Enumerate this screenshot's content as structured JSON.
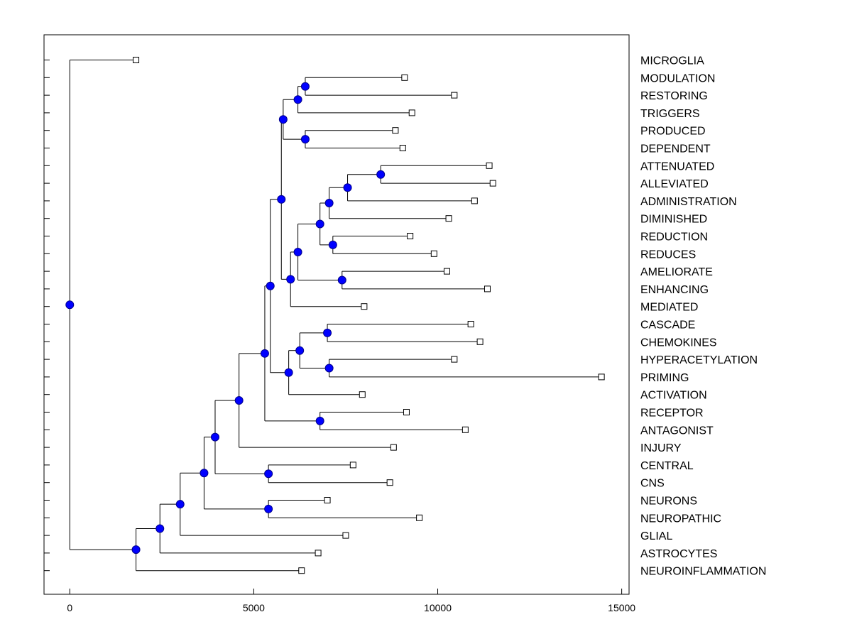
{
  "chart_data": {
    "type": "dendrogram",
    "orientation": "horizontal",
    "xlim": [
      -700,
      15200
    ],
    "x_ticks": [
      0,
      5000,
      10000,
      15000
    ],
    "x_tick_labels": [
      "0",
      "5000",
      "10000",
      "15000"
    ],
    "leaves": [
      {
        "label": "MICROGLIA",
        "value": 1800
      },
      {
        "label": "MODULATION",
        "value": 9100
      },
      {
        "label": "RESTORING",
        "value": 10450
      },
      {
        "label": "TRIGGERS",
        "value": 9300
      },
      {
        "label": "PRODUCED",
        "value": 8850
      },
      {
        "label": "DEPENDENT",
        "value": 9050
      },
      {
        "label": "ATTENUATED",
        "value": 11400
      },
      {
        "label": "ALLEVIATED",
        "value": 11500
      },
      {
        "label": "ADMINISTRATION",
        "value": 11000
      },
      {
        "label": "DIMINISHED",
        "value": 10300
      },
      {
        "label": "REDUCTION",
        "value": 9250
      },
      {
        "label": "REDUCES",
        "value": 9900
      },
      {
        "label": "AMELIORATE",
        "value": 10250
      },
      {
        "label": "ENHANCING",
        "value": 11350
      },
      {
        "label": "MEDIATED",
        "value": 8000
      },
      {
        "label": "CASCADE",
        "value": 10900
      },
      {
        "label": "CHEMOKINES",
        "value": 11150
      },
      {
        "label": "HYPERACETYLATION",
        "value": 10450
      },
      {
        "label": "PRIMING",
        "value": 14450
      },
      {
        "label": "ACTIVATION",
        "value": 7950
      },
      {
        "label": "RECEPTOR",
        "value": 9150
      },
      {
        "label": "ANTAGONIST",
        "value": 10750
      },
      {
        "label": "INJURY",
        "value": 8800
      },
      {
        "label": "CENTRAL",
        "value": 7700
      },
      {
        "label": "CNS",
        "value": 8700
      },
      {
        "label": "NEURONS",
        "value": 7000
      },
      {
        "label": "NEUROPATHIC",
        "value": 9500
      },
      {
        "label": "GLIAL",
        "value": 7500
      },
      {
        "label": "ASTROCYTES",
        "value": 6750
      },
      {
        "label": "NEUROINFLAMMATION",
        "value": 6300
      }
    ],
    "merges": [
      {
        "id": "A",
        "value": 6400,
        "children": [
          "MODULATION",
          "RESTORING"
        ]
      },
      {
        "id": "B",
        "value": 6200,
        "children": [
          "A",
          "TRIGGERS"
        ]
      },
      {
        "id": "C",
        "value": 6400,
        "children": [
          "PRODUCED",
          "DEPENDENT"
        ]
      },
      {
        "id": "D",
        "value": 5800,
        "children": [
          "B",
          "C"
        ]
      },
      {
        "id": "E",
        "value": 8450,
        "children": [
          "ATTENUATED",
          "ALLEVIATED"
        ]
      },
      {
        "id": "F",
        "value": 7550,
        "children": [
          "E",
          "ADMINISTRATION"
        ]
      },
      {
        "id": "G",
        "value": 7050,
        "children": [
          "F",
          "DIMINISHED"
        ]
      },
      {
        "id": "H",
        "value": 7150,
        "children": [
          "REDUCTION",
          "REDUCES"
        ]
      },
      {
        "id": "I",
        "value": 6800,
        "children": [
          "G",
          "H"
        ]
      },
      {
        "id": "J",
        "value": 7400,
        "children": [
          "AMELIORATE",
          "ENHANCING"
        ]
      },
      {
        "id": "K",
        "value": 6200,
        "children": [
          "I",
          "J"
        ]
      },
      {
        "id": "L",
        "value": 6000,
        "children": [
          "K",
          "MEDIATED"
        ]
      },
      {
        "id": "M",
        "value": 5750,
        "children": [
          "D",
          "L"
        ]
      },
      {
        "id": "N",
        "value": 7000,
        "children": [
          "CASCADE",
          "CHEMOKINES"
        ]
      },
      {
        "id": "O",
        "value": 7050,
        "children": [
          "HYPERACETYLATION",
          "PRIMING"
        ]
      },
      {
        "id": "P",
        "value": 6250,
        "children": [
          "N",
          "O"
        ]
      },
      {
        "id": "Q",
        "value": 5950,
        "children": [
          "P",
          "ACTIVATION"
        ]
      },
      {
        "id": "R",
        "value": 5450,
        "children": [
          "M",
          "Q"
        ]
      },
      {
        "id": "S",
        "value": 6800,
        "children": [
          "RECEPTOR",
          "ANTAGONIST"
        ]
      },
      {
        "id": "T",
        "value": 5300,
        "children": [
          "R",
          "S"
        ]
      },
      {
        "id": "U",
        "value": 4600,
        "children": [
          "T",
          "INJURY"
        ]
      },
      {
        "id": "V",
        "value": 5400,
        "children": [
          "CENTRAL",
          "CNS"
        ]
      },
      {
        "id": "W",
        "value": 3950,
        "children": [
          "U",
          "V"
        ]
      },
      {
        "id": "X",
        "value": 5400,
        "children": [
          "NEURONS",
          "NEUROPATHIC"
        ]
      },
      {
        "id": "Y",
        "value": 3650,
        "children": [
          "W",
          "X"
        ]
      },
      {
        "id": "Z",
        "value": 3000,
        "children": [
          "Y",
          "GLIAL"
        ]
      },
      {
        "id": "AA",
        "value": 2450,
        "children": [
          "Z",
          "ASTROCYTES"
        ]
      },
      {
        "id": "AB",
        "value": 1800,
        "children": [
          "AA",
          "NEUROINFLAMMATION"
        ]
      },
      {
        "id": "ROOT",
        "value": 0,
        "children": [
          "MICROGLIA",
          "AB"
        ]
      }
    ],
    "colors": {
      "node_fill": "#0000ff",
      "node_stroke": "#00008b",
      "leaf_marker_fill": "#ffffff",
      "line": "#000000"
    }
  }
}
